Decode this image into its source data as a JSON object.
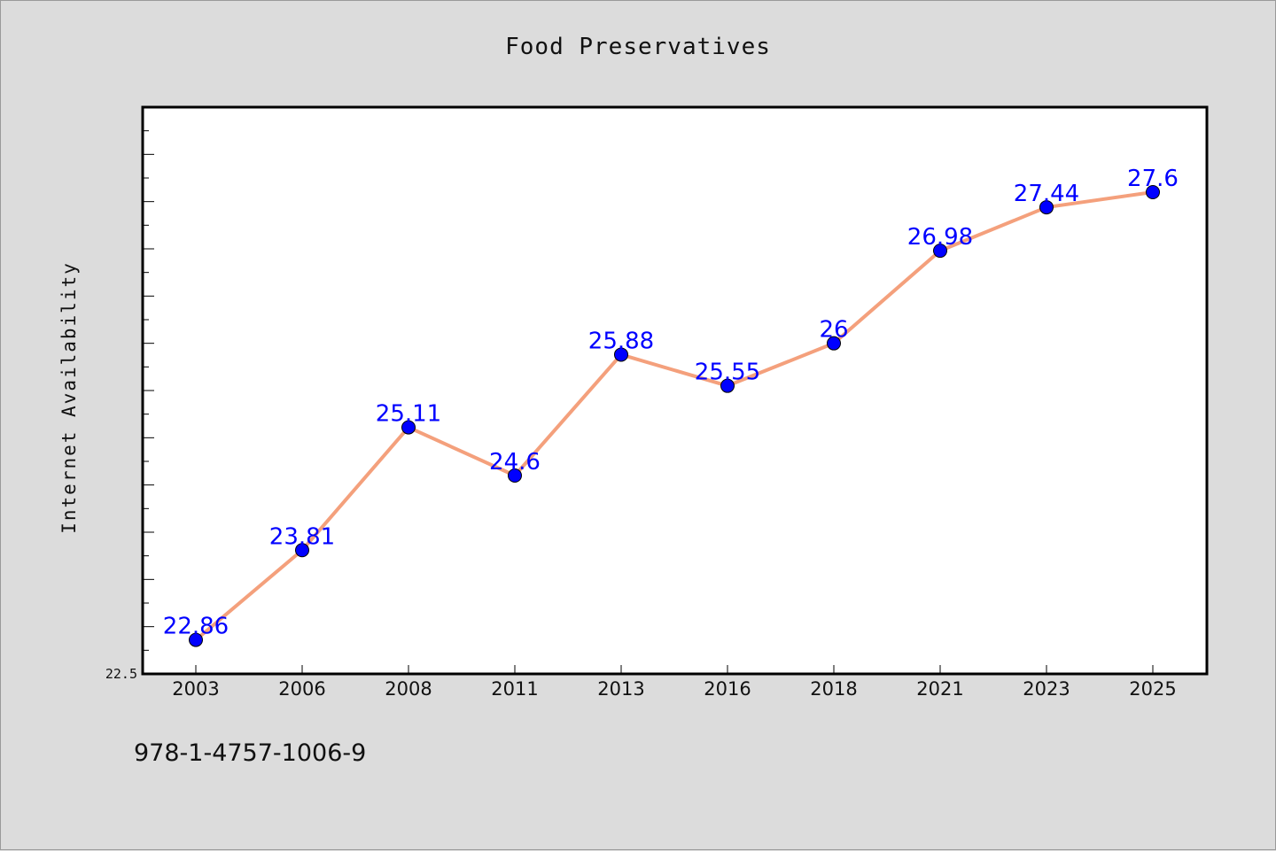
{
  "chart_data": {
    "type": "line",
    "title": "Food Preservatives",
    "xlabel": "",
    "ylabel": "Internet Availability",
    "categories": [
      "2003",
      "2006",
      "2008",
      "2011",
      "2013",
      "2016",
      "2018",
      "2021",
      "2023",
      "2025"
    ],
    "series": [
      {
        "values": [
          22.86,
          23.81,
          25.11,
          24.6,
          25.88,
          25.55,
          26,
          26.98,
          27.44,
          27.6
        ],
        "data_labels": [
          "22.86",
          "23.81",
          "25.11",
          "24.6",
          "25.88",
          "25.55",
          "26",
          "26.98",
          "27.44",
          "27.6"
        ]
      }
    ],
    "ylim": [
      22.5,
      28.5
    ],
    "y_tick_labels": [
      "22.5"
    ],
    "grid": false,
    "legend": "none",
    "colors": {
      "line": "#f4a07c",
      "marker": "#0000ff",
      "data_label": "#0000ff",
      "background": "#dcdcdc",
      "plot_background": "#ffffff"
    }
  },
  "footer": {
    "isbn": "978-1-4757-1006-9"
  }
}
